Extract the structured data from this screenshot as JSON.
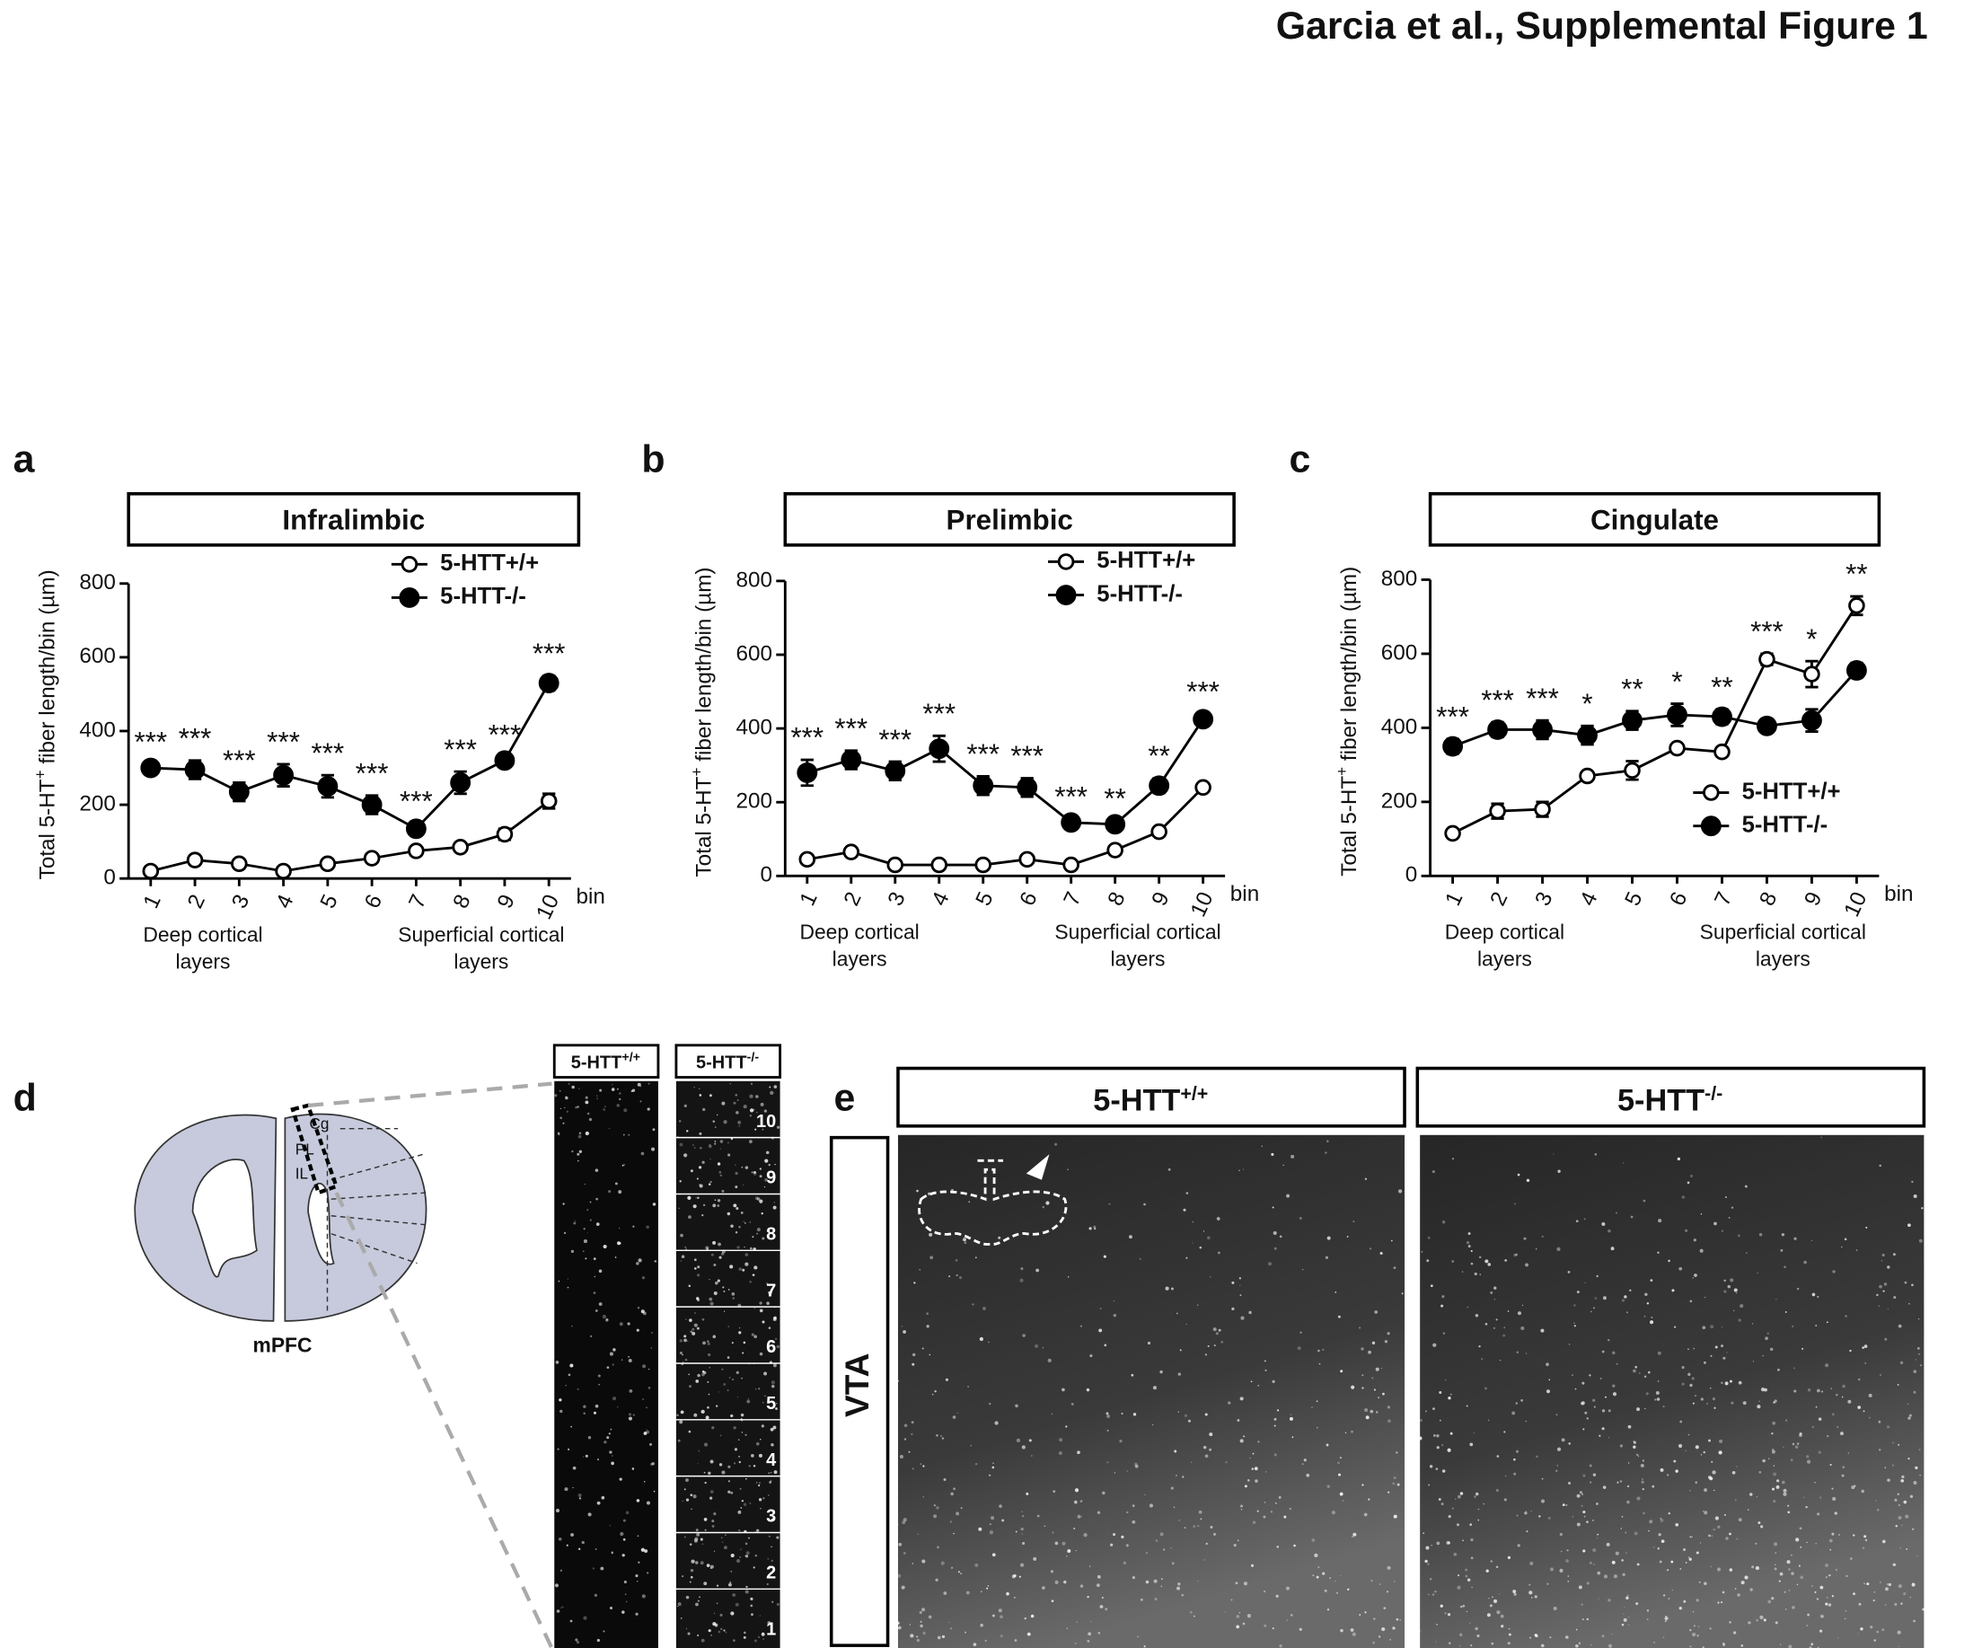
{
  "figure_title": "Garcia et al., Supplemental Figure 1",
  "chart_data": [
    {
      "type": "line",
      "panel": "a",
      "title": "Infralimbic",
      "y_label": [
        "Total 5-HT",
        "+",
        " fiber length/bin (µm)"
      ],
      "x_unit": "bin",
      "x_notes": [
        [
          "Deep cortical",
          "layers"
        ],
        [
          "Superficial cortical",
          "layers"
        ]
      ],
      "categories": [
        "1",
        "2",
        "3",
        "4",
        "5",
        "6",
        "7",
        "8",
        "9",
        "10"
      ],
      "ylim": [
        0,
        800
      ],
      "yticks": [
        0,
        200,
        400,
        600,
        800
      ],
      "legend": "upper right",
      "series": [
        {
          "name": "5-HTT+/+",
          "color": "#ffffff",
          "values": [
            20,
            50,
            40,
            20,
            40,
            55,
            75,
            85,
            120,
            210
          ],
          "errors": [
            5,
            5,
            5,
            5,
            5,
            5,
            5,
            5,
            15,
            20
          ]
        },
        {
          "name": "5-HTT-/-",
          "color": "#000000",
          "values": [
            300,
            295,
            235,
            280,
            250,
            200,
            135,
            260,
            320,
            530
          ],
          "errors": [
            10,
            25,
            25,
            30,
            30,
            25,
            15,
            30,
            10,
            20
          ]
        }
      ],
      "annotations": [
        "***",
        "***",
        "***",
        "***",
        "***",
        "***",
        "***",
        "***",
        "***",
        "***"
      ]
    },
    {
      "type": "line",
      "panel": "b",
      "title": "Prelimbic",
      "y_label": [
        "Total 5-HT",
        "+",
        " fiber length/bin (µm)"
      ],
      "x_unit": "bin",
      "x_notes": [
        [
          "Deep cortical",
          "layers"
        ],
        [
          "Superficial cortical",
          "layers"
        ]
      ],
      "categories": [
        "1",
        "2",
        "3",
        "4",
        "5",
        "6",
        "7",
        "8",
        "9",
        "10"
      ],
      "ylim": [
        0,
        800
      ],
      "yticks": [
        0,
        200,
        400,
        600,
        800
      ],
      "legend": "upper right",
      "series": [
        {
          "name": "5-HTT+/+",
          "color": "#ffffff",
          "values": [
            45,
            65,
            30,
            30,
            30,
            45,
            30,
            70,
            120,
            240
          ],
          "errors": [
            5,
            5,
            5,
            5,
            5,
            5,
            5,
            5,
            5,
            5
          ]
        },
        {
          "name": "5-HTT-/-",
          "color": "#000000",
          "values": [
            280,
            315,
            285,
            345,
            245,
            240,
            145,
            140,
            245,
            425
          ],
          "errors": [
            35,
            25,
            25,
            35,
            25,
            25,
            10,
            10,
            20,
            15
          ]
        }
      ],
      "annotations": [
        "***",
        "***",
        "***",
        "***",
        "***",
        "***",
        "***",
        "**",
        "**",
        "***"
      ]
    },
    {
      "type": "line",
      "panel": "c",
      "title": "Cingulate",
      "y_label": [
        "Total 5-HT",
        "+",
        " fiber length/bin (µm)"
      ],
      "x_unit": "bin",
      "x_notes": [
        [
          "Deep cortical",
          "layers"
        ],
        [
          "Superficial cortical",
          "layers"
        ]
      ],
      "categories": [
        "1",
        "2",
        "3",
        "4",
        "5",
        "6",
        "7",
        "8",
        "9",
        "10"
      ],
      "ylim": [
        0,
        800
      ],
      "yticks": [
        0,
        200,
        400,
        600,
        800
      ],
      "legend": "lower right",
      "series": [
        {
          "name": "5-HTT+/+",
          "color": "#ffffff",
          "values": [
            115,
            175,
            180,
            270,
            285,
            345,
            335,
            585,
            545,
            730
          ],
          "errors": [
            5,
            20,
            20,
            5,
            25,
            5,
            5,
            15,
            35,
            25
          ]
        },
        {
          "name": "5-HTT-/-",
          "color": "#000000",
          "values": [
            350,
            395,
            395,
            380,
            420,
            435,
            430,
            405,
            420,
            555
          ],
          "errors": [
            20,
            20,
            25,
            25,
            25,
            30,
            20,
            15,
            30,
            20
          ]
        }
      ],
      "annotations": [
        "***",
        "***",
        "***",
        "*",
        "**",
        "*",
        "**",
        "***",
        "*",
        "**"
      ]
    }
  ],
  "panel_d": {
    "label": "d",
    "regions": [
      "Cg",
      "PL",
      "IL"
    ],
    "caption": "mPFC",
    "columns": [
      {
        "base": "5-HTT",
        "sup": "+/+"
      },
      {
        "base": "5-HTT",
        "sup": "-/-"
      }
    ],
    "bins": [
      "1",
      "2",
      "3",
      "4",
      "5",
      "6",
      "7",
      "8",
      "9",
      "10"
    ]
  },
  "panel_e": {
    "label": "e",
    "columns": [
      {
        "base": "5-HTT",
        "sup": "+/+"
      },
      {
        "base": "5-HTT",
        "sup": "-/-"
      }
    ],
    "row": "VTA"
  }
}
